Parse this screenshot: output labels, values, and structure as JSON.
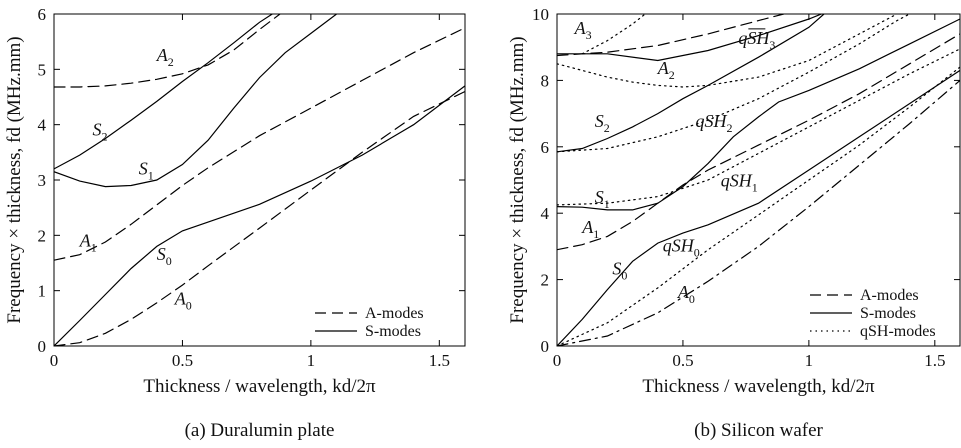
{
  "chart_data": [
    {
      "type": "line",
      "caption": "(a) Duralumin plate",
      "xlabel": "Thickness / wavelength, kd/2π",
      "ylabel": "Frequency × thickness, fd (MHz.mm)",
      "xlim": [
        0,
        1.6
      ],
      "ylim": [
        0,
        6
      ],
      "xticks": [
        "0",
        "0.5",
        "1",
        "1.5"
      ],
      "yticks": [
        "0",
        "1",
        "2",
        "3",
        "4",
        "5",
        "6"
      ],
      "legend": {
        "position": "bottom-right",
        "entries": [
          {
            "label": "A-modes",
            "style": "dashed"
          },
          {
            "label": "S-modes",
            "style": "solid"
          }
        ]
      },
      "series": [
        {
          "mode": "A0",
          "style": "dashed",
          "points": [
            [
              0,
              0
            ],
            [
              0.1,
              0.06
            ],
            [
              0.2,
              0.23
            ],
            [
              0.3,
              0.48
            ],
            [
              0.4,
              0.78
            ],
            [
              0.5,
              1.1
            ],
            [
              0.6,
              1.45
            ],
            [
              0.8,
              2.13
            ],
            [
              1.0,
              2.82
            ],
            [
              1.2,
              3.5
            ],
            [
              1.4,
              4.15
            ],
            [
              1.6,
              4.6
            ]
          ]
        },
        {
          "mode": "S0",
          "style": "solid",
          "points": [
            [
              0,
              0
            ],
            [
              0.1,
              0.46
            ],
            [
              0.2,
              0.93
            ],
            [
              0.3,
              1.4
            ],
            [
              0.4,
              1.8
            ],
            [
              0.5,
              2.08
            ],
            [
              0.6,
              2.24
            ],
            [
              0.8,
              2.56
            ],
            [
              1.0,
              2.98
            ],
            [
              1.2,
              3.45
            ],
            [
              1.4,
              4.0
            ],
            [
              1.6,
              4.7
            ]
          ]
        },
        {
          "mode": "A1",
          "style": "dashed",
          "points": [
            [
              0,
              1.55
            ],
            [
              0.1,
              1.65
            ],
            [
              0.2,
              1.88
            ],
            [
              0.3,
              2.2
            ],
            [
              0.4,
              2.55
            ],
            [
              0.5,
              2.9
            ],
            [
              0.6,
              3.22
            ],
            [
              0.8,
              3.8
            ],
            [
              1.0,
              4.3
            ],
            [
              1.2,
              4.8
            ],
            [
              1.4,
              5.3
            ],
            [
              1.6,
              5.75
            ]
          ]
        },
        {
          "mode": "S1",
          "style": "solid",
          "points": [
            [
              0,
              3.15
            ],
            [
              0.1,
              2.98
            ],
            [
              0.2,
              2.88
            ],
            [
              0.3,
              2.9
            ],
            [
              0.4,
              3.0
            ],
            [
              0.5,
              3.28
            ],
            [
              0.6,
              3.72
            ],
            [
              0.7,
              4.3
            ],
            [
              0.8,
              4.85
            ],
            [
              0.9,
              5.3
            ],
            [
              1.0,
              5.65
            ],
            [
              1.1,
              6.0
            ]
          ]
        },
        {
          "mode": "S2",
          "style": "solid",
          "points": [
            [
              0,
              3.2
            ],
            [
              0.1,
              3.45
            ],
            [
              0.2,
              3.75
            ],
            [
              0.3,
              4.08
            ],
            [
              0.4,
              4.42
            ],
            [
              0.5,
              4.78
            ],
            [
              0.6,
              5.12
            ],
            [
              0.7,
              5.48
            ],
            [
              0.8,
              5.85
            ],
            [
              0.85,
              6.0
            ]
          ]
        },
        {
          "mode": "A2",
          "style": "dashed",
          "points": [
            [
              0,
              4.68
            ],
            [
              0.1,
              4.68
            ],
            [
              0.2,
              4.7
            ],
            [
              0.3,
              4.75
            ],
            [
              0.4,
              4.82
            ],
            [
              0.5,
              4.92
            ],
            [
              0.6,
              5.08
            ],
            [
              0.7,
              5.35
            ],
            [
              0.8,
              5.72
            ],
            [
              0.88,
              6.0
            ]
          ]
        }
      ],
      "annotations": [
        {
          "label": "A",
          "sub": "2",
          "x": 0.4,
          "y": 5.15
        },
        {
          "label": "S",
          "sub": "2",
          "x": 0.15,
          "y": 3.8
        },
        {
          "label": "S",
          "sub": "1",
          "x": 0.33,
          "y": 3.1
        },
        {
          "label": "A",
          "sub": "1",
          "x": 0.1,
          "y": 1.8
        },
        {
          "label": "S",
          "sub": "0",
          "x": 0.4,
          "y": 1.55
        },
        {
          "label": "A",
          "sub": "0",
          "x": 0.47,
          "y": 0.75
        }
      ]
    },
    {
      "type": "line",
      "caption": "(b) Silicon wafer",
      "xlabel": "Thickness / wavelength, kd/2π",
      "ylabel": "Frequency × thickness, fd (MHz.mm)",
      "xlim": [
        0,
        1.6
      ],
      "ylim": [
        0,
        10
      ],
      "xticks": [
        "0",
        "0.5",
        "1",
        "1.5"
      ],
      "yticks": [
        "0",
        "2",
        "4",
        "6",
        "8",
        "10"
      ],
      "legend": {
        "position": "bottom-right",
        "entries": [
          {
            "label": "A-modes",
            "style": "dashed"
          },
          {
            "label": "S-modes",
            "style": "solid"
          },
          {
            "label": "qSH-modes",
            "style": "dotted"
          }
        ]
      },
      "series": [
        {
          "mode": "A0",
          "style": "dashdot",
          "points": [
            [
              0,
              0
            ],
            [
              0.2,
              0.3
            ],
            [
              0.4,
              1.0
            ],
            [
              0.6,
              1.95
            ],
            [
              0.8,
              3.0
            ],
            [
              1.0,
              4.2
            ],
            [
              1.2,
              5.45
            ],
            [
              1.4,
              6.7
            ],
            [
              1.6,
              8.0
            ]
          ]
        },
        {
          "mode": "S0",
          "style": "solid",
          "points": [
            [
              0,
              0
            ],
            [
              0.1,
              0.8
            ],
            [
              0.2,
              1.7
            ],
            [
              0.3,
              2.55
            ],
            [
              0.4,
              3.1
            ],
            [
              0.5,
              3.4
            ],
            [
              0.6,
              3.65
            ],
            [
              0.8,
              4.3
            ],
            [
              1.0,
              5.3
            ],
            [
              1.2,
              6.3
            ],
            [
              1.4,
              7.3
            ],
            [
              1.6,
              8.3
            ]
          ]
        },
        {
          "mode": "qSH0",
          "style": "dotted",
          "points": [
            [
              0,
              0
            ],
            [
              0.2,
              0.7
            ],
            [
              0.4,
              1.75
            ],
            [
              0.6,
              2.9
            ],
            [
              0.8,
              3.95
            ],
            [
              1.0,
              5.0
            ],
            [
              1.2,
              6.05
            ],
            [
              1.4,
              7.2
            ],
            [
              1.6,
              8.4
            ]
          ]
        },
        {
          "mode": "A1",
          "style": "dashed",
          "points": [
            [
              0,
              2.9
            ],
            [
              0.1,
              3.05
            ],
            [
              0.2,
              3.3
            ],
            [
              0.3,
              3.75
            ],
            [
              0.4,
              4.3
            ],
            [
              0.5,
              4.85
            ],
            [
              0.6,
              5.3
            ],
            [
              0.8,
              6.05
            ],
            [
              1.0,
              6.8
            ],
            [
              1.2,
              7.6
            ],
            [
              1.4,
              8.5
            ],
            [
              1.6,
              9.4
            ]
          ]
        },
        {
          "mode": "S1",
          "style": "solid",
          "points": [
            [
              0,
              4.2
            ],
            [
              0.1,
              4.18
            ],
            [
              0.2,
              4.1
            ],
            [
              0.3,
              4.1
            ],
            [
              0.4,
              4.3
            ],
            [
              0.5,
              4.8
            ],
            [
              0.6,
              5.5
            ],
            [
              0.7,
              6.3
            ],
            [
              0.8,
              6.9
            ],
            [
              0.88,
              7.35
            ],
            [
              1.0,
              7.7
            ],
            [
              1.2,
              8.35
            ],
            [
              1.4,
              9.1
            ],
            [
              1.6,
              9.85
            ]
          ]
        },
        {
          "mode": "qSH1",
          "style": "dotted",
          "points": [
            [
              0,
              4.25
            ],
            [
              0.2,
              4.3
            ],
            [
              0.4,
              4.5
            ],
            [
              0.6,
              5.0
            ],
            [
              0.8,
              5.8
            ],
            [
              1.0,
              6.6
            ],
            [
              1.2,
              7.4
            ],
            [
              1.4,
              8.2
            ],
            [
              1.6,
              8.95
            ]
          ]
        },
        {
          "mode": "S2",
          "style": "solid",
          "points": [
            [
              0,
              5.85
            ],
            [
              0.1,
              5.95
            ],
            [
              0.2,
              6.25
            ],
            [
              0.3,
              6.6
            ],
            [
              0.4,
              7.0
            ],
            [
              0.5,
              7.45
            ],
            [
              0.6,
              7.85
            ],
            [
              0.8,
              8.7
            ],
            [
              1.0,
              9.6
            ],
            [
              1.06,
              10.0
            ]
          ]
        },
        {
          "mode": "qSH2",
          "style": "dotted",
          "points": [
            [
              0,
              5.85
            ],
            [
              0.2,
              5.95
            ],
            [
              0.4,
              6.3
            ],
            [
              0.6,
              6.8
            ],
            [
              0.8,
              7.45
            ],
            [
              1.0,
              8.25
            ],
            [
              1.2,
              9.1
            ],
            [
              1.35,
              9.8
            ],
            [
              1.4,
              10.0
            ]
          ]
        },
        {
          "mode": "A2",
          "style": "dotted",
          "points": [
            [
              0,
              8.5
            ],
            [
              0.1,
              8.3
            ],
            [
              0.2,
              8.1
            ],
            [
              0.3,
              7.95
            ],
            [
              0.4,
              7.85
            ],
            [
              0.5,
              7.8
            ],
            [
              0.6,
              7.85
            ],
            [
              0.8,
              8.1
            ],
            [
              1.0,
              8.6
            ],
            [
              1.2,
              9.4
            ],
            [
              1.35,
              10.0
            ]
          ]
        },
        {
          "mode": "qSH3",
          "style": "solid",
          "points": [
            [
              0,
              8.8
            ],
            [
              0.2,
              8.8
            ],
            [
              0.4,
              8.6
            ],
            [
              0.5,
              8.75
            ],
            [
              0.6,
              8.9
            ],
            [
              0.8,
              9.35
            ],
            [
              1.0,
              9.85
            ],
            [
              1.05,
              10.0
            ]
          ]
        },
        {
          "mode": "A3",
          "style": "dashed",
          "points": [
            [
              0,
              8.75
            ],
            [
              0.2,
              8.85
            ],
            [
              0.4,
              9.05
            ],
            [
              0.6,
              9.4
            ],
            [
              0.8,
              9.8
            ],
            [
              0.9,
              10.0
            ]
          ]
        },
        {
          "mode": "A3-dotted",
          "style": "dotted",
          "points": [
            [
              0.1,
              8.8
            ],
            [
              0.2,
              9.2
            ],
            [
              0.3,
              9.7
            ],
            [
              0.35,
              10.0
            ]
          ]
        }
      ],
      "annotations": [
        {
          "label": "A",
          "sub": "3",
          "x": 0.07,
          "y": 9.4
        },
        {
          "label": "qSH",
          "sub": "3",
          "x": 0.72,
          "y": 9.1,
          "overline": true
        },
        {
          "label": "A",
          "sub": "2",
          "x": 0.4,
          "y": 8.2
        },
        {
          "label": "S",
          "sub": "2",
          "x": 0.15,
          "y": 6.6
        },
        {
          "label": "qSH",
          "sub": "2",
          "x": 0.55,
          "y": 6.6
        },
        {
          "label": "qSH",
          "sub": "1",
          "x": 0.65,
          "y": 4.8
        },
        {
          "label": "S",
          "sub": "1",
          "x": 0.15,
          "y": 4.3
        },
        {
          "label": "A",
          "sub": "1",
          "x": 0.1,
          "y": 3.4
        },
        {
          "label": "qSH",
          "sub": "0",
          "x": 0.42,
          "y": 2.85
        },
        {
          "label": "S",
          "sub": "0",
          "x": 0.22,
          "y": 2.15
        },
        {
          "label": "A",
          "sub": "0",
          "x": 0.48,
          "y": 1.45
        }
      ]
    }
  ]
}
